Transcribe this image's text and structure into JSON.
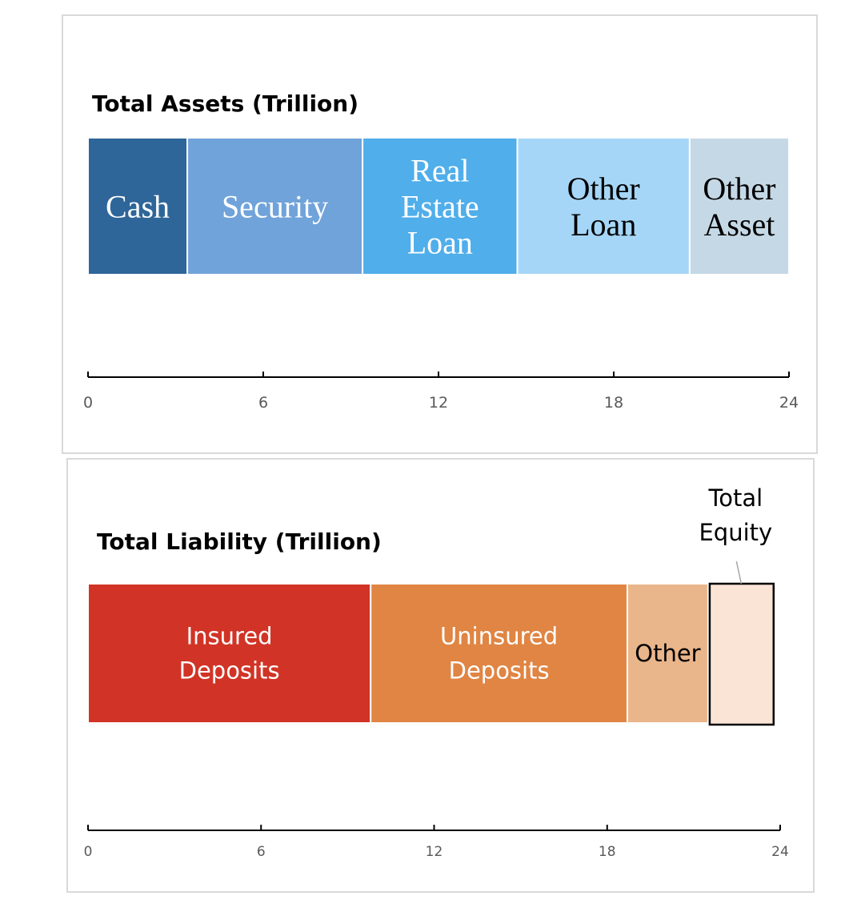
{
  "chart_data": [
    {
      "type": "bar",
      "orientation": "horizontal-stacked",
      "title": "Total Assets (Trillion)",
      "xlim": [
        0,
        24
      ],
      "x_ticks": [
        "0",
        "6",
        "12",
        "18",
        "24"
      ],
      "grid": false,
      "segments": [
        {
          "label": [
            "Cash"
          ],
          "value": 3.4,
          "color": "#2e6699",
          "text_color": "#ffffff"
        },
        {
          "label": [
            "Security"
          ],
          "value": 6.0,
          "color": "#70a3d9",
          "text_color": "#ffffff"
        },
        {
          "label": [
            "Real",
            "Estate",
            "Loan"
          ],
          "value": 5.3,
          "color": "#50aeea",
          "text_color": "#ffffff"
        },
        {
          "label": [
            "Other",
            "Loan"
          ],
          "value": 5.9,
          "color": "#a6d6f7",
          "text_color": "#000000"
        },
        {
          "label": [
            "Other",
            "Asset"
          ],
          "value": 3.4,
          "color": "#c5d8e5",
          "text_color": "#000000"
        }
      ]
    },
    {
      "type": "bar",
      "orientation": "horizontal-stacked",
      "title": "Total Liability (Trillion)",
      "xlim": [
        0,
        24
      ],
      "x_ticks": [
        "0",
        "6",
        "12",
        "18",
        "24"
      ],
      "grid": false,
      "segments": [
        {
          "label": [
            "Insured",
            "Deposits"
          ],
          "value": 9.8,
          "color": "#d13426",
          "text_color": "#ffffff"
        },
        {
          "label": [
            "Uninsured",
            "Deposits"
          ],
          "value": 8.9,
          "color": "#e08543",
          "text_color": "#ffffff"
        },
        {
          "label": [
            "Other"
          ],
          "value": 2.8,
          "color": "#e9b58a",
          "text_color": "#000000"
        },
        {
          "label": [
            "Total",
            "Equity"
          ],
          "value": 2.3,
          "color": "#f9e4d6",
          "text_color": "#000000",
          "callout": true
        }
      ]
    }
  ]
}
